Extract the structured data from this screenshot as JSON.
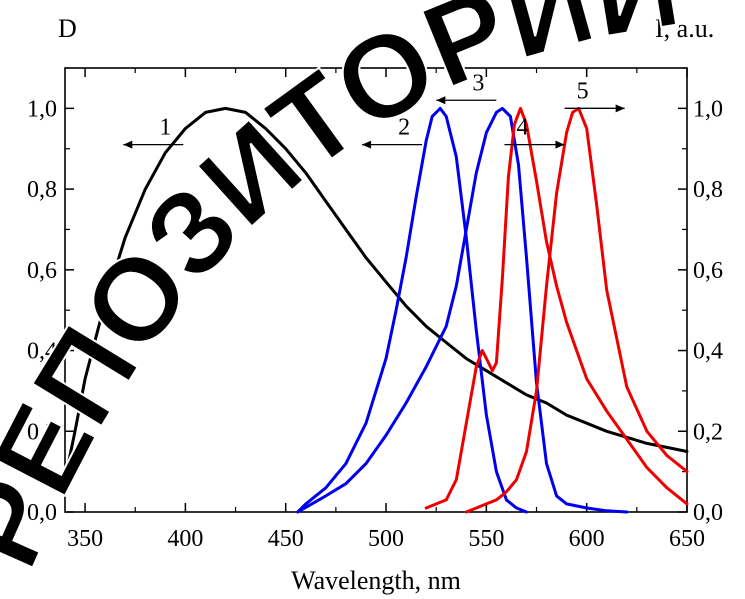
{
  "chart_data": {
    "type": "line",
    "ylabel_left": "D",
    "ylabel_right": "I, a.u.",
    "xlabel": "Wavelength, nm",
    "xlim": [
      340,
      650
    ],
    "ylim": [
      0,
      1.1
    ],
    "x_ticks": [
      350,
      400,
      450,
      500,
      550,
      600,
      650
    ],
    "x_tick_labels": [
      "350",
      "400",
      "450",
      "500",
      "550",
      "600",
      "650"
    ],
    "y_ticks": [
      0,
      0.2,
      0.4,
      0.6,
      0.8,
      1.0
    ],
    "y_tick_labels": [
      "0,0",
      "0,2",
      "0,4",
      "0,6",
      "0,8",
      "1,0"
    ],
    "grid": false,
    "series": [
      {
        "name": "1",
        "color": "#000000",
        "axis": "left",
        "x": [
          340,
          345,
          350,
          360,
          370,
          380,
          390,
          400,
          410,
          420,
          430,
          440,
          450,
          460,
          470,
          480,
          490,
          500,
          510,
          520,
          530,
          540,
          550,
          560,
          570,
          580,
          590,
          600,
          610,
          620,
          630,
          640,
          650
        ],
        "y": [
          0.08,
          0.2,
          0.33,
          0.52,
          0.68,
          0.8,
          0.89,
          0.95,
          0.99,
          1.0,
          0.99,
          0.95,
          0.9,
          0.84,
          0.77,
          0.7,
          0.63,
          0.57,
          0.51,
          0.46,
          0.42,
          0.38,
          0.35,
          0.32,
          0.29,
          0.27,
          0.24,
          0.22,
          0.2,
          0.185,
          0.17,
          0.16,
          0.15
        ]
      },
      {
        "name": "2",
        "color": "#0000ee",
        "axis": "left",
        "x": [
          456,
          460,
          470,
          480,
          490,
          500,
          505,
          510,
          515,
          520,
          523,
          527,
          530,
          535,
          540,
          545,
          550,
          555,
          560,
          565,
          570
        ],
        "y": [
          0.0,
          0.02,
          0.06,
          0.12,
          0.22,
          0.38,
          0.5,
          0.63,
          0.78,
          0.92,
          0.98,
          1.0,
          0.98,
          0.88,
          0.68,
          0.45,
          0.24,
          0.1,
          0.03,
          0.01,
          0.0
        ]
      },
      {
        "name": "3",
        "color": "#0000ee",
        "axis": "right",
        "x": [
          456,
          470,
          480,
          490,
          500,
          510,
          520,
          525,
          530,
          535,
          540,
          545,
          550,
          555,
          558,
          562,
          566,
          570,
          575,
          580,
          585,
          590,
          600,
          610,
          620
        ],
        "y": [
          0.0,
          0.04,
          0.07,
          0.12,
          0.19,
          0.27,
          0.36,
          0.41,
          0.46,
          0.56,
          0.7,
          0.84,
          0.94,
          0.99,
          1.0,
          0.98,
          0.86,
          0.63,
          0.32,
          0.12,
          0.04,
          0.02,
          0.01,
          0.003,
          0.0
        ]
      },
      {
        "name": "4",
        "color": "#ee0000",
        "axis": "right",
        "x": [
          520,
          525,
          530,
          535,
          540,
          545,
          548,
          550,
          553,
          555,
          558,
          561,
          564,
          567,
          570,
          575,
          580,
          585,
          590,
          595,
          600,
          610,
          620,
          630,
          640,
          650
        ],
        "y": [
          0.01,
          0.02,
          0.03,
          0.08,
          0.22,
          0.36,
          0.4,
          0.38,
          0.35,
          0.37,
          0.58,
          0.83,
          0.96,
          1.0,
          0.96,
          0.82,
          0.67,
          0.56,
          0.47,
          0.4,
          0.33,
          0.25,
          0.18,
          0.11,
          0.06,
          0.02
        ]
      },
      {
        "name": "5",
        "color": "#ee0000",
        "axis": "right",
        "x": [
          540,
          545,
          550,
          555,
          560,
          565,
          570,
          575,
          580,
          585,
          590,
          593,
          596,
          600,
          605,
          610,
          620,
          630,
          640,
          650
        ],
        "y": [
          0.0,
          0.01,
          0.02,
          0.03,
          0.05,
          0.08,
          0.15,
          0.3,
          0.56,
          0.79,
          0.94,
          0.99,
          1.0,
          0.95,
          0.76,
          0.55,
          0.31,
          0.2,
          0.14,
          0.1
        ]
      }
    ],
    "annotations": [
      {
        "text": "1",
        "x": 390,
        "y": 0.92,
        "arrow": "left"
      },
      {
        "text": "2",
        "x": 509,
        "y": 0.92,
        "arrow": "left"
      },
      {
        "text": "3",
        "x": 546,
        "y": 1.03,
        "arrow": "left"
      },
      {
        "text": "4",
        "x": 568,
        "y": 0.92,
        "arrow": "right"
      },
      {
        "text": "5",
        "x": 598,
        "y": 1.01,
        "arrow": "right"
      }
    ]
  },
  "watermark": {
    "text": "РЕПОЗИТОРИЙ",
    "color": "#000000"
  }
}
